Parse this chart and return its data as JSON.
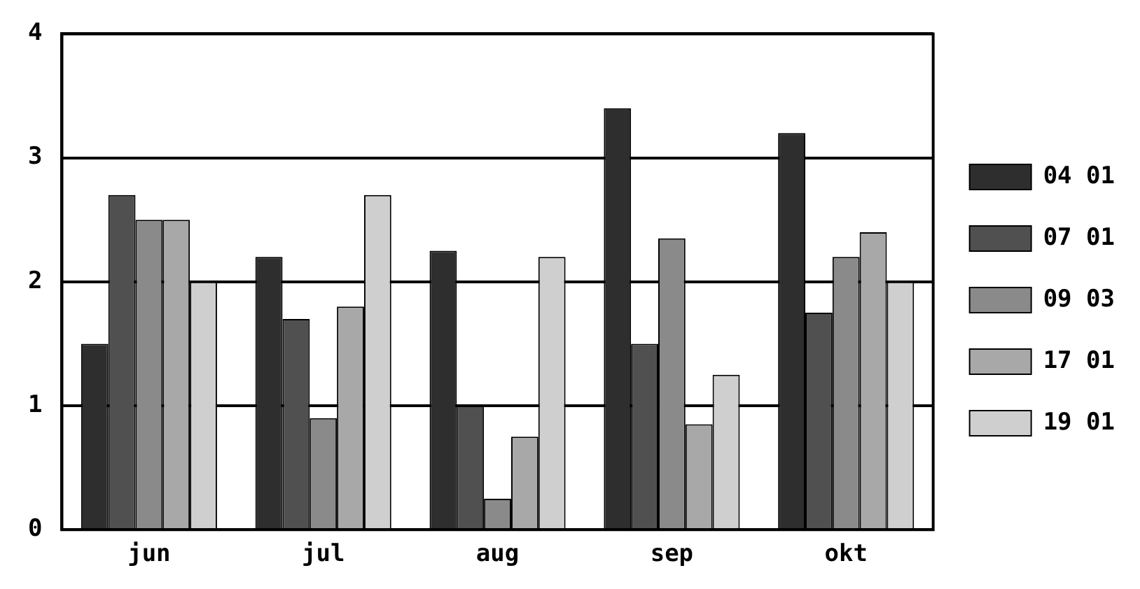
{
  "chart_data": {
    "type": "bar",
    "categories": [
      "jun",
      "jul",
      "aug",
      "sep",
      "okt"
    ],
    "series": [
      {
        "name": "04 01",
        "color": "#2e2e2e",
        "values": [
          1.5,
          2.2,
          2.25,
          3.4,
          3.2
        ]
      },
      {
        "name": "07 01",
        "color": "#505050",
        "values": [
          2.7,
          1.7,
          1.0,
          1.5,
          1.75
        ]
      },
      {
        "name": "09 03",
        "color": "#8a8a8a",
        "values": [
          2.5,
          0.9,
          0.25,
          2.35,
          2.2
        ]
      },
      {
        "name": "17 01",
        "color": "#a8a8a8",
        "values": [
          2.5,
          1.8,
          0.75,
          0.85,
          2.4
        ]
      },
      {
        "name": "19 01",
        "color": "#cfcfcf",
        "values": [
          2.0,
          2.7,
          2.2,
          1.25,
          2.0
        ]
      }
    ],
    "ylim": [
      0,
      4
    ],
    "yticks": [
      0,
      1,
      2,
      3,
      4
    ],
    "grid": "y",
    "legend": "right"
  }
}
